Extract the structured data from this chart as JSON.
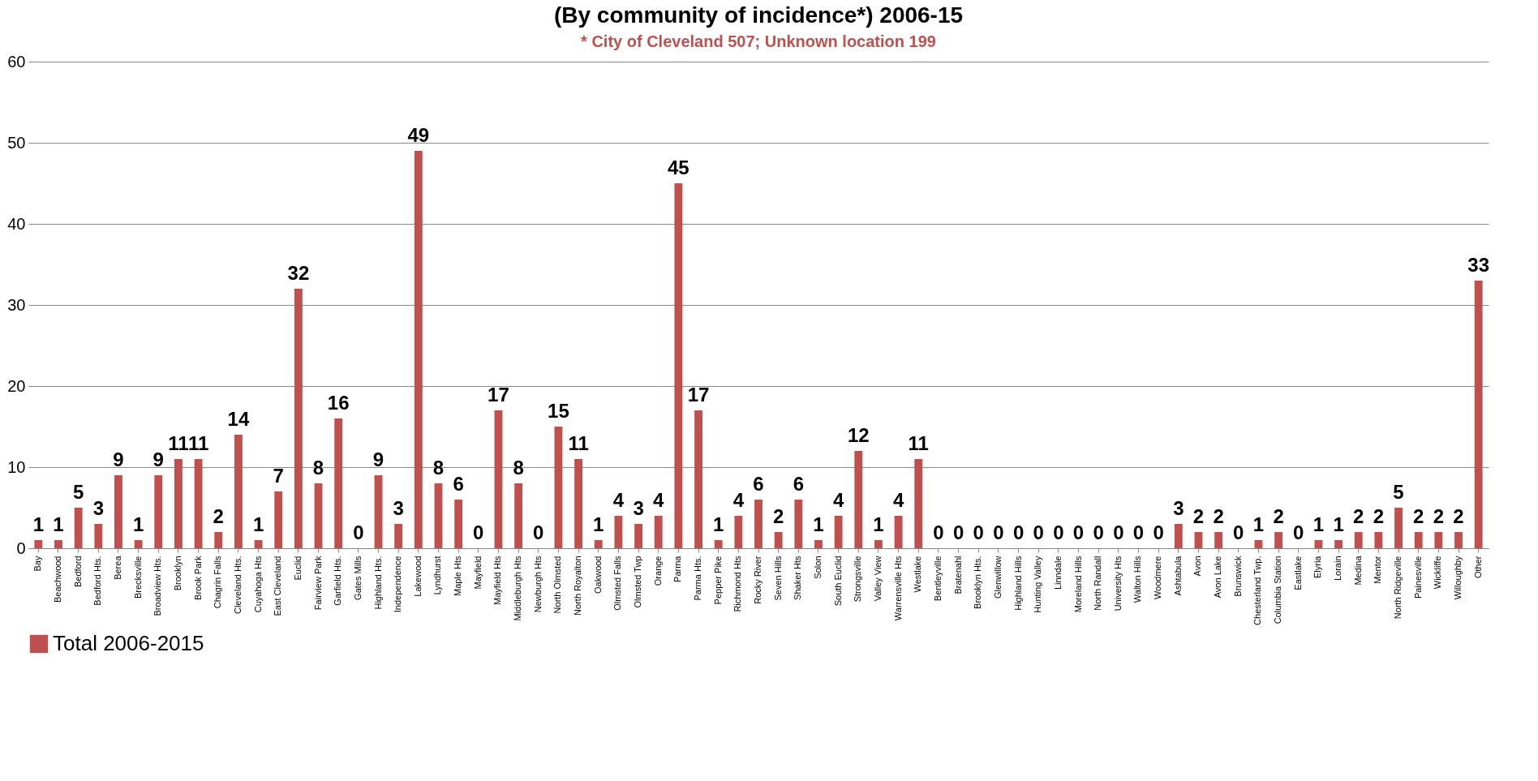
{
  "chart_data": {
    "type": "bar",
    "title": "(By community of incidence*) 2006-15",
    "subtitle": "* City of Cleveland 507; Unknown location 199",
    "categories": [
      "Bay",
      "Beachwood",
      "Bedford",
      "Bedford Hts.",
      "Berea",
      "Brecksville",
      "Broadview Hts.",
      "Brooklyn",
      "Brook Park",
      "Chagrin Falls",
      "Cleveland Hts.",
      "Cuyahoga Hts",
      "East Cleveland",
      "Euclid",
      "Fairview Park",
      "Garfield Hts.",
      "Gates Mills",
      "Highland Hts.",
      "Independence",
      "Lakewood",
      "Lyndhurst",
      "Maple Hts",
      "Mayfield",
      "Mayfield Hts",
      "Middleburgh Hts",
      "Newburgh Hts",
      "North Olmsted",
      "North Royalton",
      "Oakwood",
      "Olmsted Falls",
      "Olmsted Twp",
      "Orange",
      "Parma",
      "Parma Hts.",
      "Pepper Pike",
      "Richmond Hts",
      "Rocky River",
      "Seven Hills",
      "Shaker Hts",
      "Solon",
      "South Euclid",
      "Strongsville",
      "Valley View",
      "Warrensville Hts",
      "Westlake",
      "Bentleyville",
      "Bratenahl",
      "Brooklyn Hts.",
      "Glenwillow",
      "Highland Hills",
      "Hunting Valley",
      "Linndale",
      "Moreland Hills",
      "North Randall",
      "University Hts",
      "Walton Hills",
      "Woodmere",
      "Ashtabula",
      "Avon",
      "Avon Lake",
      "Brunswick",
      "Chesterland Twp.",
      "Columbia Station",
      "Eastlake",
      "Elyria",
      "Lorain",
      "Medina",
      "Mentor",
      "North Ridgeville",
      "Painesville",
      "Wickliffe",
      "Willoughby",
      "Other"
    ],
    "series": [
      {
        "name": "Total 2006-2015",
        "color": "#c0504d",
        "values": [
          1,
          1,
          5,
          3,
          9,
          1,
          9,
          11,
          11,
          2,
          14,
          1,
          7,
          32,
          8,
          16,
          0,
          9,
          3,
          49,
          8,
          6,
          0,
          17,
          8,
          0,
          15,
          11,
          1,
          4,
          3,
          4,
          45,
          17,
          1,
          4,
          6,
          2,
          6,
          1,
          4,
          12,
          1,
          4,
          11,
          0,
          0,
          0,
          0,
          0,
          0,
          0,
          0,
          0,
          0,
          0,
          0,
          3,
          2,
          2,
          0,
          1,
          2,
          0,
          1,
          1,
          2,
          2,
          5,
          2,
          2,
          2,
          33
        ]
      }
    ],
    "ylim": [
      0,
      60
    ],
    "yticks": [
      0,
      10,
      20,
      30,
      40,
      50,
      60
    ],
    "grid": "y",
    "legend": "bottom",
    "data_labels": true
  }
}
